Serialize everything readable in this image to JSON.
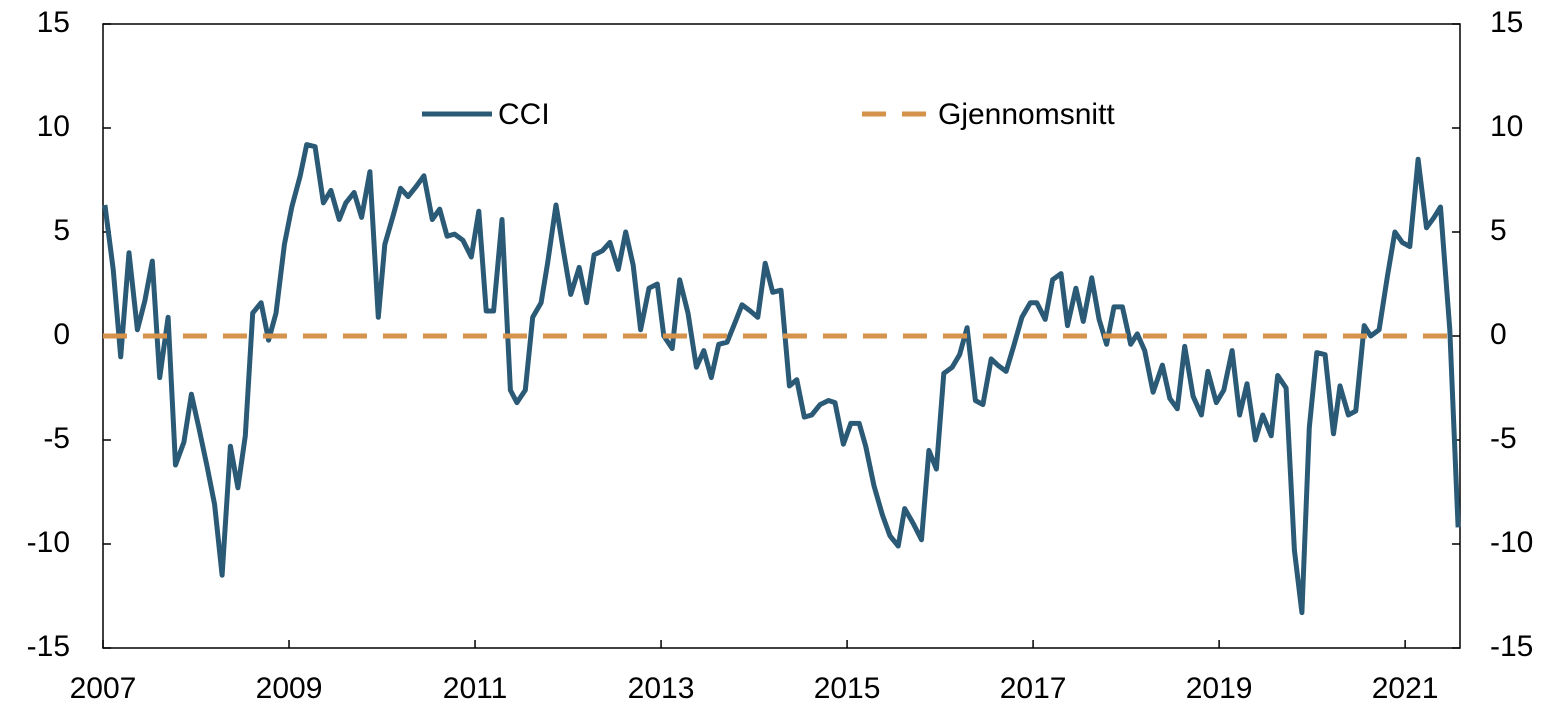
{
  "chart_data": {
    "type": "line",
    "series": [
      {
        "name": "CCI",
        "color": "#2b5a76",
        "dash": false,
        "x": [
          2007.02,
          2007.11,
          2007.19,
          2007.28,
          2007.37,
          2007.45,
          2007.53,
          2007.61,
          2007.7,
          2007.78,
          2007.87,
          2007.95,
          2008.03,
          2008.12,
          2008.2,
          2008.28,
          2008.37,
          2008.45,
          2008.53,
          2008.61,
          2008.7,
          2008.78,
          2008.86,
          2008.95,
          2009.03,
          2009.12,
          2009.19,
          2009.28,
          2009.37,
          2009.45,
          2009.54,
          2009.61,
          2009.7,
          2009.78,
          2009.87,
          2009.96,
          2010.03,
          2010.12,
          2010.2,
          2010.28,
          2010.37,
          2010.45,
          2010.54,
          2010.62,
          2010.7,
          2010.78,
          2010.87,
          2010.96,
          2011.04,
          2011.12,
          2011.2,
          2011.29,
          2011.38,
          2011.45,
          2011.54,
          2011.62,
          2011.71,
          2011.78,
          2011.87,
          2011.95,
          2012.03,
          2012.12,
          2012.2,
          2012.28,
          2012.37,
          2012.45,
          2012.54,
          2012.62,
          2012.7,
          2012.78,
          2012.87,
          2012.96,
          2013.03,
          2013.12,
          2013.2,
          2013.29,
          2013.38,
          2013.46,
          2013.54,
          2013.62,
          2013.71,
          2013.8,
          2013.87,
          2013.96,
          2014.04,
          2014.12,
          2014.2,
          2014.29,
          2014.38,
          2014.46,
          2014.54,
          2014.62,
          2014.71,
          2014.8,
          2014.87,
          2014.96,
          2015.04,
          2015.13,
          2015.2,
          2015.29,
          2015.38,
          2015.46,
          2015.55,
          2015.62,
          2015.71,
          2015.8,
          2015.88,
          2015.96,
          2016.04,
          2016.13,
          2016.21,
          2016.29,
          2016.38,
          2016.46,
          2016.55,
          2016.62,
          2016.71,
          2016.79,
          2016.88,
          2016.97,
          2017.04,
          2017.13,
          2017.21,
          2017.3,
          2017.37,
          2017.46,
          2017.54,
          2017.63,
          2017.71,
          2017.79,
          2017.87,
          2017.96,
          2018.05,
          2018.12,
          2018.2,
          2018.29,
          2018.39,
          2018.47,
          2018.55,
          2018.63,
          2018.72,
          2018.81,
          2018.88,
          2018.97,
          2019.05,
          2019.14,
          2019.22,
          2019.3,
          2019.39,
          2019.47,
          2019.56,
          2019.63,
          2019.72,
          2019.81,
          2019.89,
          2019.97,
          2020.05,
          2020.14,
          2020.23,
          2020.3,
          2020.39,
          2020.47,
          2020.56,
          2020.63,
          2020.72,
          2020.81,
          2020.89,
          2020.97,
          2021.05,
          2021.14,
          2021.23,
          2021.31,
          2021.38,
          2021.48,
          2021.57
        ],
        "values": [
          6.3,
          3.2,
          -1.0,
          4.0,
          0.3,
          1.7,
          3.6,
          -2.0,
          0.9,
          -6.2,
          -5.1,
          -2.8,
          -4.4,
          -6.3,
          -8.1,
          -11.5,
          -5.3,
          -7.3,
          -4.8,
          1.1,
          1.6,
          -0.2,
          1.1,
          4.4,
          6.2,
          7.7,
          9.2,
          9.1,
          6.4,
          7.0,
          5.6,
          6.4,
          6.9,
          5.7,
          7.9,
          0.9,
          4.4,
          5.8,
          7.1,
          6.7,
          7.2,
          7.7,
          5.6,
          6.1,
          4.8,
          4.9,
          4.6,
          3.8,
          6.0,
          1.2,
          1.2,
          5.6,
          -2.6,
          -3.2,
          -2.6,
          0.9,
          1.6,
          3.5,
          6.3,
          4.1,
          2.0,
          3.3,
          1.6,
          3.9,
          4.1,
          4.5,
          3.2,
          5.0,
          3.4,
          0.3,
          2.3,
          2.5,
          0.0,
          -0.6,
          2.7,
          1.1,
          -1.5,
          -0.7,
          -2.0,
          -0.4,
          -0.3,
          0.7,
          1.5,
          1.2,
          0.9,
          3.5,
          2.1,
          2.2,
          -2.4,
          -2.1,
          -3.9,
          -3.8,
          -3.3,
          -3.1,
          -3.2,
          -5.2,
          -4.2,
          -4.2,
          -5.3,
          -7.2,
          -8.6,
          -9.6,
          -10.1,
          -8.3,
          -9.0,
          -9.8,
          -5.5,
          -6.4,
          -1.8,
          -1.5,
          -0.9,
          0.4,
          -3.1,
          -3.3,
          -1.1,
          -1.4,
          -1.7,
          -0.5,
          0.9,
          1.6,
          1.6,
          0.8,
          2.7,
          3.0,
          0.5,
          2.3,
          0.7,
          2.8,
          0.8,
          -0.4,
          1.4,
          1.4,
          -0.4,
          0.1,
          -0.7,
          -2.7,
          -1.4,
          -3.0,
          -3.5,
          -0.5,
          -2.9,
          -3.8,
          -1.7,
          -3.2,
          -2.6,
          -0.7,
          -3.8,
          -2.3,
          -5.0,
          -3.8,
          -4.8,
          -1.9,
          -2.5,
          -10.3,
          -13.3,
          -4.4,
          -0.8,
          -0.9,
          -4.7,
          -2.4,
          -3.8,
          -3.6,
          0.5,
          0.0,
          0.3,
          2.9,
          5.0,
          4.5,
          4.3,
          8.5,
          5.2,
          5.7,
          6.2,
          0.3,
          -9.2
        ]
      },
      {
        "name": "Gjennomsnitt",
        "color": "#d4924a",
        "dash": true,
        "x": [
          2007,
          2021.59
        ],
        "values": [
          0,
          0
        ]
      }
    ],
    "xlim": [
      2007,
      2021.59
    ],
    "xticks": [
      2007,
      2009,
      2011,
      2013,
      2015,
      2017,
      2019,
      2021
    ],
    "ylim": [
      -15,
      15
    ],
    "yticks": [
      -15,
      -10,
      -5,
      0,
      5,
      10,
      15
    ],
    "y2lim": [
      -15,
      15
    ],
    "y2ticks": [
      -15,
      -10,
      -5,
      0,
      5,
      10,
      15
    ],
    "grid": false,
    "legend": "top"
  }
}
